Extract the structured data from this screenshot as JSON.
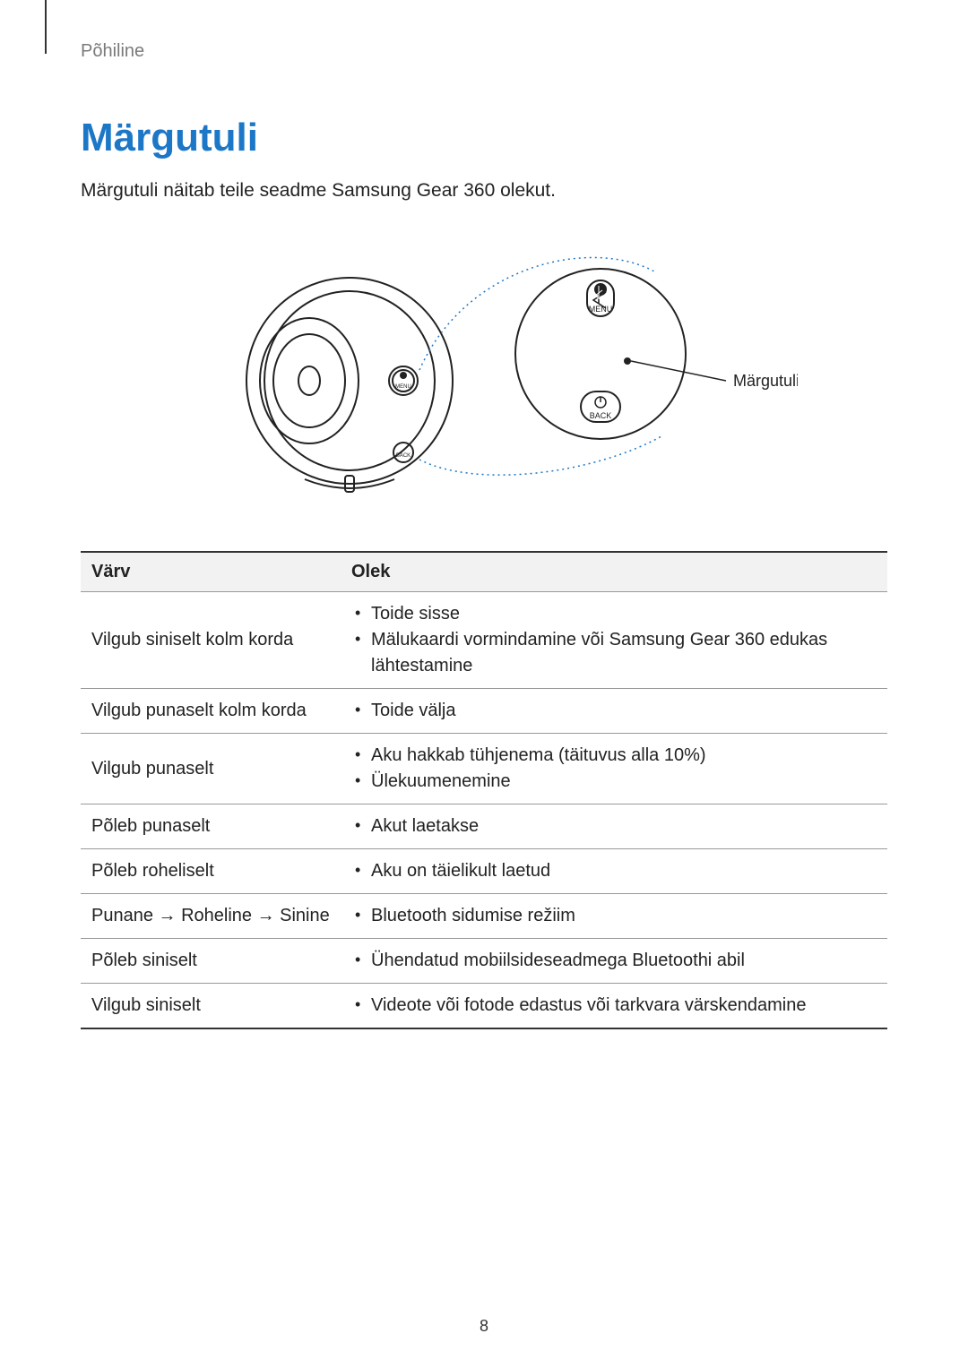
{
  "section_label": "Põhiline",
  "title": "Märgutuli",
  "intro": "Märgutuli näitab teile seadme Samsung Gear 360 olekut.",
  "figure": {
    "callout_label": "Märgutuli",
    "menu_label": "MENU",
    "back_label": "BACK",
    "menu_small": "MENU",
    "back_small": "BACK"
  },
  "table": {
    "headers": {
      "color": "Värv",
      "status": "Olek"
    },
    "rows": [
      {
        "color": "Vilgub siniselt kolm korda",
        "statuses": [
          "Toide sisse",
          "Mälukaardi vormindamine või Samsung Gear 360 edukas lähtestamine"
        ]
      },
      {
        "color": "Vilgub punaselt kolm korda",
        "statuses": [
          "Toide välja"
        ]
      },
      {
        "color": "Vilgub punaselt",
        "statuses": [
          "Aku hakkab tühjenema (täituvus alla 10%)",
          "Ülekuumenemine"
        ]
      },
      {
        "color": "Põleb punaselt",
        "statuses": [
          "Akut laetakse"
        ]
      },
      {
        "color": "Põleb roheliselt",
        "statuses": [
          "Aku on täielikult laetud"
        ]
      },
      {
        "color": "Punane → Roheline → Sinine",
        "statuses": [
          "Bluetooth sidumise režiim"
        ]
      },
      {
        "color": "Põleb siniselt",
        "statuses": [
          "Ühendatud mobiilsideseadmega Bluetoothi abil"
        ]
      },
      {
        "color": "Vilgub siniselt",
        "statuses": [
          "Videote või fotode edastus või tarkvara värskendamine"
        ]
      }
    ]
  },
  "page_number": "8",
  "colors": {
    "title_color": "#1d77c7",
    "section_label_color": "#7a7a7a",
    "table_header_bg": "#f2f2f2",
    "border_strong": "#333333",
    "border_light": "#999999",
    "dotted": "#1d77c7"
  }
}
